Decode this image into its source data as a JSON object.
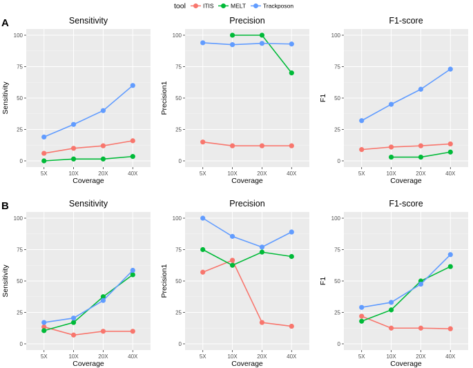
{
  "legend": {
    "title": "tool",
    "entries": [
      {
        "name": "ITIS",
        "color": "#F8766D"
      },
      {
        "name": "MELT",
        "color": "#00BA38"
      },
      {
        "name": "Trackposon",
        "color": "#619CFF"
      }
    ]
  },
  "rows": [
    {
      "tag": "A"
    },
    {
      "tag": "B"
    }
  ],
  "chart_data": [
    {
      "type": "line",
      "row": "A",
      "title": "Sensitivity",
      "xlabel": "Coverage",
      "ylabel": "Sensitivity",
      "categories": [
        "5X",
        "10X",
        "20X",
        "40X"
      ],
      "ylim": [
        0,
        100
      ],
      "yticks": [
        0,
        25,
        50,
        75,
        100
      ],
      "series": [
        {
          "name": "ITIS",
          "values": [
            6,
            10,
            12,
            16
          ]
        },
        {
          "name": "MELT",
          "values": [
            0,
            1.5,
            1.5,
            3.5
          ]
        },
        {
          "name": "Trackposon",
          "values": [
            19,
            29,
            40,
            60
          ]
        }
      ]
    },
    {
      "type": "line",
      "row": "A",
      "title": "Precision",
      "xlabel": "Coverage",
      "ylabel": "Precision1",
      "categories": [
        "5X",
        "10X",
        "20X",
        "40X"
      ],
      "ylim": [
        0,
        100
      ],
      "yticks": [
        0,
        25,
        50,
        75,
        100
      ],
      "series": [
        {
          "name": "ITIS",
          "values": [
            15,
            12,
            12,
            12
          ]
        },
        {
          "name": "MELT",
          "values": [
            null,
            100,
            100,
            70
          ]
        },
        {
          "name": "Trackposon",
          "values": [
            94,
            92.5,
            93.5,
            93
          ]
        }
      ]
    },
    {
      "type": "line",
      "row": "A",
      "title": "F1-score",
      "xlabel": "Coverage",
      "ylabel": "F1",
      "categories": [
        "5X",
        "10X",
        "20X",
        "40X"
      ],
      "ylim": [
        0,
        100
      ],
      "yticks": [
        0,
        25,
        50,
        75,
        100
      ],
      "series": [
        {
          "name": "ITIS",
          "values": [
            9,
            11,
            12,
            13.5
          ]
        },
        {
          "name": "MELT",
          "values": [
            null,
            3,
            3,
            7
          ]
        },
        {
          "name": "Trackposon",
          "values": [
            32,
            45,
            57,
            73
          ]
        }
      ]
    },
    {
      "type": "line",
      "row": "B",
      "title": "Sensitivity",
      "xlabel": "Coverage",
      "ylabel": "Sensitivity",
      "categories": [
        "5X",
        "10X",
        "20X",
        "40X"
      ],
      "ylim": [
        0,
        100
      ],
      "yticks": [
        0,
        25,
        50,
        75,
        100
      ],
      "series": [
        {
          "name": "ITIS",
          "values": [
            13.5,
            7,
            10,
            10
          ]
        },
        {
          "name": "MELT",
          "values": [
            10.5,
            17,
            37.5,
            55
          ]
        },
        {
          "name": "Trackposon",
          "values": [
            17,
            20.5,
            34.5,
            58.5
          ]
        }
      ]
    },
    {
      "type": "line",
      "row": "B",
      "title": "Precision",
      "xlabel": "Coverage",
      "ylabel": "Precision1",
      "categories": [
        "5X",
        "10X",
        "20X",
        "40X"
      ],
      "ylim": [
        0,
        100
      ],
      "yticks": [
        0,
        25,
        50,
        75,
        100
      ],
      "series": [
        {
          "name": "ITIS",
          "values": [
            57,
            66.5,
            17,
            14
          ]
        },
        {
          "name": "MELT",
          "values": [
            75,
            62.5,
            73,
            69.5
          ]
        },
        {
          "name": "Trackposon",
          "values": [
            100,
            85.5,
            77,
            89
          ]
        }
      ]
    },
    {
      "type": "line",
      "row": "B",
      "title": "F1-score",
      "xlabel": "Coverage",
      "ylabel": "F1",
      "categories": [
        "5X",
        "10X",
        "20X",
        "40X"
      ],
      "ylim": [
        0,
        100
      ],
      "yticks": [
        0,
        25,
        50,
        75,
        100
      ],
      "series": [
        {
          "name": "ITIS",
          "values": [
            22,
            12.5,
            12.5,
            12
          ]
        },
        {
          "name": "MELT",
          "values": [
            18,
            27,
            50,
            61.5
          ]
        },
        {
          "name": "Trackposon",
          "values": [
            29,
            33,
            47.5,
            71
          ]
        }
      ]
    }
  ]
}
